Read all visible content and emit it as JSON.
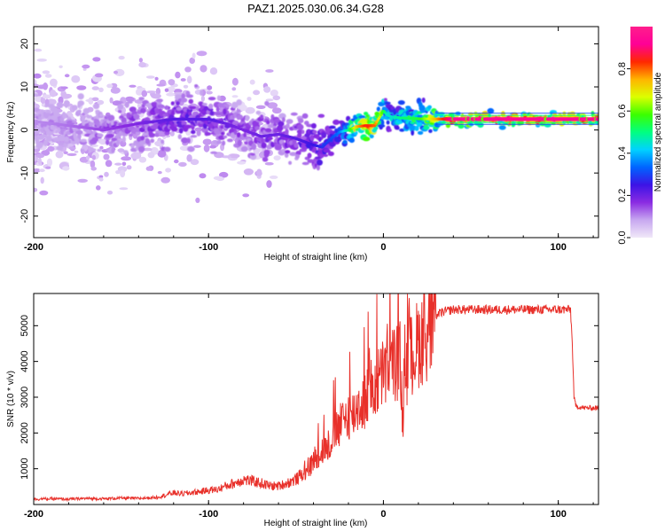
{
  "title": "PAZ1.2025.030.06.34.G28",
  "chart_data": [
    {
      "type": "heatmap",
      "xlabel": "Height of straight line (km)",
      "ylabel": "Frequency (Hz)",
      "xlim": [
        -200,
        123
      ],
      "ylim": [
        -25,
        24
      ],
      "x_ticks": [
        "-200",
        "-100",
        "0",
        "100"
      ],
      "x_tick_values": [
        -200,
        -100,
        0,
        100
      ],
      "y_ticks": [
        "-20",
        "-10",
        "0",
        "10",
        "20"
      ],
      "y_tick_values": [
        -20,
        -10,
        0,
        10,
        20
      ],
      "colorbar": {
        "label": "Normalized spectral amplitude",
        "range": [
          0,
          1
        ],
        "ticks": [
          "0.0",
          "0.2",
          "0.4",
          "0.6",
          "0.8"
        ],
        "tick_values": [
          0,
          0.2,
          0.4,
          0.6,
          0.8
        ],
        "colormap": [
          "#f0e8f8",
          "#c8a8f0",
          "#8a2be2",
          "#3c14e6",
          "#0064ff",
          "#00d2ff",
          "#00ff80",
          "#3cff00",
          "#dcff00",
          "#ffb400",
          "#ff2800",
          "#ff0096",
          "#ff1e8c"
        ]
      },
      "ridge": {
        "x": [
          -200,
          -180,
          -160,
          -140,
          -120,
          -100,
          -90,
          -80,
          -70,
          -60,
          -50,
          -40,
          -35,
          -30,
          -25,
          -20,
          -15,
          -10,
          -5,
          0,
          2,
          5,
          10,
          20,
          40,
          60,
          80,
          100,
          123
        ],
        "freq": [
          2.0,
          1.0,
          0.0,
          1.5,
          2.5,
          2.5,
          1.5,
          0.0,
          -1.5,
          -1.0,
          -2.0,
          -3.5,
          -4.0,
          -2.0,
          -0.5,
          0.0,
          0.8,
          1.0,
          1.0,
          4.5,
          3.5,
          3.0,
          2.8,
          2.6,
          2.5,
          2.5,
          2.5,
          2.5,
          2.5
        ],
        "amplitude": [
          0.1,
          0.12,
          0.15,
          0.18,
          0.22,
          0.22,
          0.2,
          0.18,
          0.2,
          0.2,
          0.22,
          0.25,
          0.28,
          0.3,
          0.35,
          0.5,
          0.75,
          0.85,
          0.8,
          0.55,
          0.45,
          0.45,
          0.5,
          0.55,
          0.95,
          0.95,
          0.95,
          0.95,
          0.95
        ]
      }
    },
    {
      "type": "line",
      "xlabel": "Height of straight line (km)",
      "ylabel": "SNR (10 * v/v)",
      "xlim": [
        -200,
        123
      ],
      "ylim": [
        0,
        5900
      ],
      "x_ticks": [
        "-200",
        "-100",
        "0",
        "100"
      ],
      "x_tick_values": [
        -200,
        -100,
        0,
        100
      ],
      "y_ticks": [
        "1000",
        "2000",
        "3000",
        "4000",
        "5000"
      ],
      "y_tick_values": [
        1000,
        2000,
        3000,
        4000,
        5000
      ],
      "color": "#e8302a",
      "series": [
        {
          "x": [
            -200,
            -190,
            -180,
            -170,
            -160,
            -150,
            -140,
            -130,
            -125,
            -120,
            -115,
            -110,
            -105,
            -100,
            -95,
            -90,
            -85,
            -80,
            -75,
            -70,
            -65,
            -60,
            -55,
            -50,
            -45,
            -42,
            -40,
            -38,
            -35,
            -32,
            -30,
            -28,
            -25,
            -22,
            -20,
            -18,
            -15,
            -12,
            -10,
            -8,
            -5,
            -2,
            0,
            2,
            5,
            8,
            10,
            11,
            12,
            15,
            20,
            25,
            30,
            35,
            40,
            50,
            60,
            70,
            80,
            90,
            100,
            107,
            108,
            109,
            110,
            115,
            120,
            123
          ],
          "y": [
            150,
            160,
            150,
            170,
            160,
            180,
            170,
            200,
            260,
            330,
            300,
            330,
            360,
            400,
            420,
            520,
            600,
            700,
            650,
            600,
            520,
            520,
            600,
            700,
            900,
            1100,
            1300,
            1500,
            1600,
            1700,
            1900,
            2100,
            2300,
            2500,
            2700,
            2600,
            2900,
            3000,
            3100,
            3300,
            3500,
            3700,
            3900,
            4000,
            4100,
            4300,
            4000,
            2300,
            3800,
            4300,
            4800,
            5100,
            5300,
            5400,
            5450,
            5450,
            5450,
            5450,
            5450,
            5450,
            5450,
            5450,
            4500,
            3000,
            2750,
            2700,
            2700,
            2700
          ]
        }
      ]
    }
  ]
}
